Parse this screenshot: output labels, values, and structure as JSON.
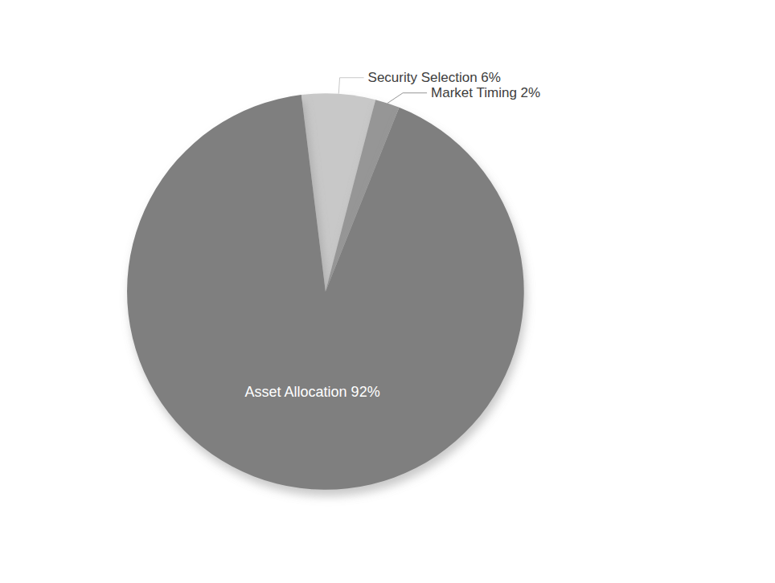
{
  "chart_data": {
    "type": "pie",
    "categories": [
      "Security Selection 6%",
      "Market Timing 2%",
      "Asset Allocation 92%"
    ],
    "values": [
      6,
      2,
      92
    ],
    "colors": [
      "#c8c8c8",
      "#969696",
      "#7f7f7f"
    ],
    "legend": false
  }
}
